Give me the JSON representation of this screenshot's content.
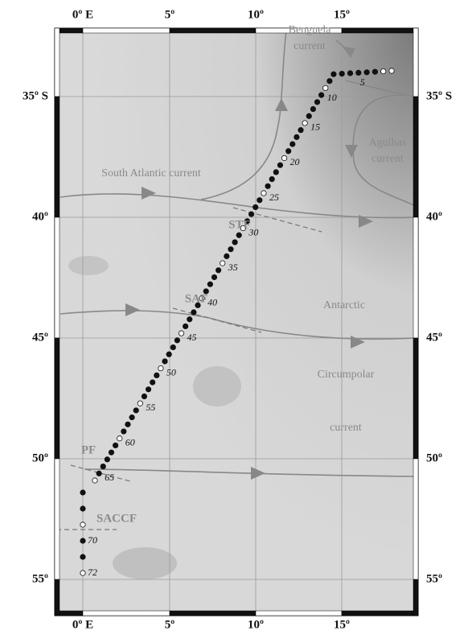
{
  "axes": {
    "top_labels": [
      "0º E",
      "5º",
      "10º",
      "15º"
    ],
    "bottom_labels": [
      "0º E",
      "5º",
      "10º",
      "15º"
    ],
    "left_labels": [
      "35º S",
      "40º",
      "45º",
      "50º",
      "55º"
    ],
    "right_labels": [
      "35º S",
      "40º",
      "45º",
      "50º",
      "55º"
    ]
  },
  "regions": {
    "benguela": [
      "Benguela",
      "current"
    ],
    "agulhas": [
      "Agulhas",
      "current"
    ],
    "south_atlantic": "South Atlantic current",
    "acc": [
      "Antarctic",
      "Circumpolar",
      "current"
    ]
  },
  "fronts": {
    "stf": "STF",
    "saf": "SAF",
    "pf": "PF",
    "saccf": "SACCF"
  },
  "stations": {
    "labels": [
      "5",
      "10",
      "15",
      "20",
      "25",
      "30",
      "35",
      "40",
      "45",
      "50",
      "55",
      "60",
      "65",
      "70",
      "72"
    ]
  }
}
